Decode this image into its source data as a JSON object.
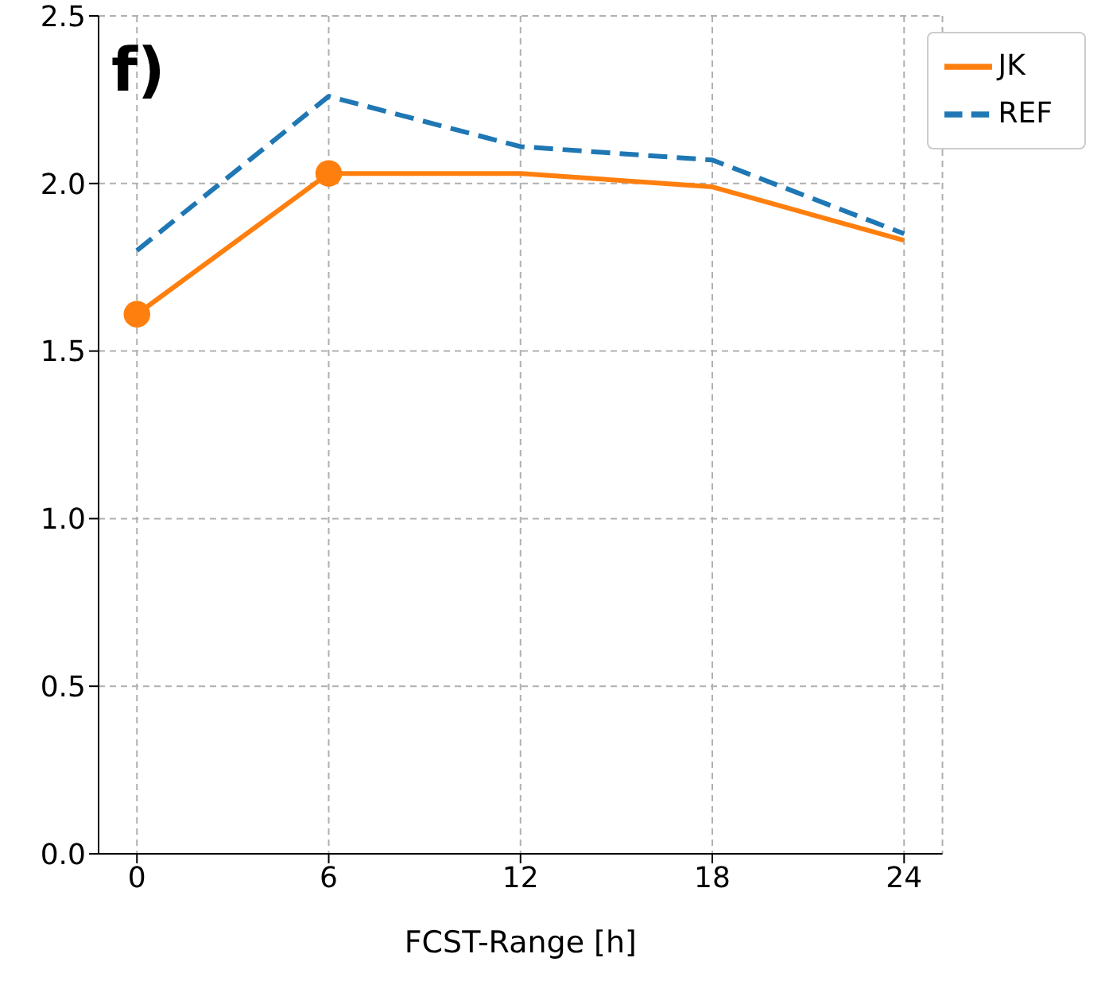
{
  "chart_data": {
    "type": "line",
    "xlabel": "FCST-Range [h]",
    "annotations": [
      "f)"
    ],
    "x": [
      0,
      6,
      12,
      18,
      24
    ],
    "series": [
      {
        "name": "JK",
        "color": "#ff7f0e",
        "values": [
          1.61,
          2.03,
          2.03,
          1.99,
          1.83
        ],
        "line_style": "solid"
      },
      {
        "name": "REF",
        "color": "#1f77b4",
        "values": [
          1.8,
          2.26,
          2.11,
          2.07,
          1.85
        ],
        "line_style": "dashed"
      },
      {
        "type": "scatter",
        "color": "#ff7f0e",
        "x": [
          0,
          6
        ],
        "values": [
          1.61,
          2.03
        ],
        "marker": "circle"
      }
    ],
    "xlim": [
      -1.2,
      25.2
    ],
    "xticks": [
      0,
      6,
      12,
      18,
      24
    ],
    "ylim": [
      0,
      2.5
    ],
    "yticks": [
      {
        "value": 0,
        "label": "0.0"
      },
      0.5,
      {
        "value": 1,
        "label": "1.0"
      },
      1.5,
      {
        "value": 2,
        "label": "2.0"
      },
      2.5
    ],
    "grid": true,
    "legend": "top right"
  }
}
